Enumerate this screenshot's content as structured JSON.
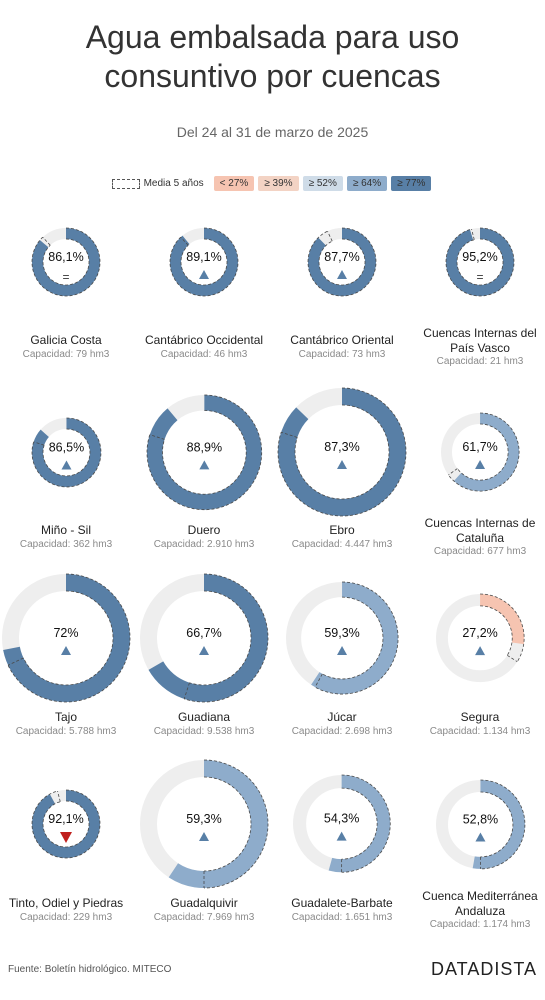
{
  "header": {
    "title_line1": "Agua embalsada para uso",
    "title_line2": "consuntivo por cuencas",
    "subtitle": "Del 24 al 31 de marzo de 2025"
  },
  "legend": {
    "average_label": "Media 5 años",
    "items": [
      {
        "label": "< 27%",
        "color": "#f6c4b1"
      },
      {
        "label": "≥ 39%",
        "color": "#f3d3c4"
      },
      {
        "label": "≥ 52%",
        "color": "#cfdce8"
      },
      {
        "label": "≥ 64%",
        "color": "#8eaccb"
      },
      {
        "label": "≥ 77%",
        "color": "#587fa6"
      }
    ]
  },
  "chart_data": {
    "type": "donut-grid",
    "title": "Agua embalsada para uso consuntivo por cuencas",
    "subtitle": "Del 24 al 31 de marzo de 2025",
    "track_color": "#eeeeee",
    "basins": [
      {
        "name": "Galicia Costa",
        "label": "86,1%",
        "value": 86.1,
        "capacity": "Capacidad: 79 hm3",
        "avg": 88,
        "trend": "=",
        "color": "#587fa6"
      },
      {
        "name": "Cantábrico Occidental",
        "label": "89,1%",
        "value": 89.1,
        "capacity": "Capacidad: 46 hm3",
        "avg": 88,
        "trend": "up",
        "color": "#587fa6"
      },
      {
        "name": "Cantábrico Oriental",
        "label": "87,7%",
        "value": 87.7,
        "capacity": "Capacidad: 73 hm3",
        "avg": 93,
        "trend": "up",
        "color": "#587fa6"
      },
      {
        "name": "Cuencas Internas del País Vasco",
        "label": "95,2%",
        "value": 95.2,
        "capacity": "Capacidad: 21 hm3",
        "avg": 96,
        "trend": "=",
        "color": "#587fa6"
      },
      {
        "name": "Miño - Sil",
        "label": "86,5%",
        "value": 86.5,
        "capacity": "Capacidad: 362 hm3",
        "avg": 80,
        "trend": "up",
        "color": "#587fa6"
      },
      {
        "name": "Duero",
        "label": "88,9%",
        "value": 88.9,
        "capacity": "Capacidad: 2.910 hm3",
        "avg": 80,
        "trend": "up",
        "color": "#587fa6"
      },
      {
        "name": "Ebro",
        "label": "87,3%",
        "value": 87.3,
        "capacity": "Capacidad: 4.447 hm3",
        "avg": 80,
        "trend": "up",
        "color": "#587fa6"
      },
      {
        "name": "Cuencas Internas de Cataluña",
        "label": "61,7%",
        "value": 61.7,
        "capacity": "Capacidad: 677 hm3",
        "avg": 65,
        "trend": "up",
        "color": "#8eaccb"
      },
      {
        "name": "Tajo",
        "label": "72%",
        "value": 72,
        "capacity": "Capacidad: 5.788 hm3",
        "avg": 68,
        "trend": "up",
        "color": "#587fa6"
      },
      {
        "name": "Guadiana",
        "label": "66,7%",
        "value": 66.7,
        "capacity": "Capacidad: 9.538 hm3",
        "avg": 55,
        "trend": "up",
        "color": "#587fa6"
      },
      {
        "name": "Júcar",
        "label": "59,3%",
        "value": 59.3,
        "capacity": "Capacidad: 2.698 hm3",
        "avg": 58,
        "trend": "up",
        "color": "#8eaccb"
      },
      {
        "name": "Segura",
        "label": "27,2%",
        "value": 27.2,
        "capacity": "Capacidad: 1.134 hm3",
        "avg": 34,
        "trend": "up",
        "color": "#f6c4b1"
      },
      {
        "name": "Tinto, Odiel y Piedras",
        "label": "92,1%",
        "value": 92.1,
        "capacity": "Capacidad: 229 hm3",
        "avg": 96,
        "trend": "down",
        "color": "#587fa6"
      },
      {
        "name": "Guadalquivir",
        "label": "59,3%",
        "value": 59.3,
        "capacity": "Capacidad: 7.969 hm3",
        "avg": 50,
        "trend": "up",
        "color": "#8eaccb"
      },
      {
        "name": "Guadalete-Barbate",
        "label": "54,3%",
        "value": 54.3,
        "capacity": "Capacidad: 1.651 hm3",
        "avg": 50,
        "trend": "up",
        "color": "#8eaccb"
      },
      {
        "name": "Cuenca Mediterránea Andaluza",
        "label": "52,8%",
        "value": 52.8,
        "capacity": "Capacidad: 1.174 hm3",
        "avg": 50,
        "trend": "up",
        "color": "#8eaccb"
      }
    ]
  },
  "footer": {
    "source": "Fuente: Boletín hidrológico. MITECO",
    "brand": "DATADISTA"
  }
}
